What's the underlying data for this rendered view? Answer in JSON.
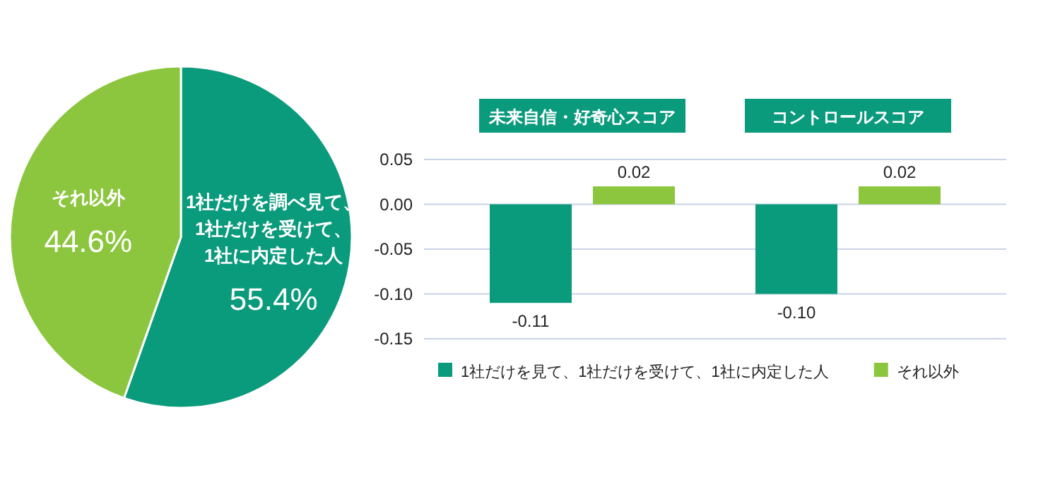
{
  "chart_data": [
    {
      "type": "pie",
      "categories": [
        "1社だけを調べ見て、\n1社だけを受けて、\n1社に内定した人",
        "それ以外"
      ],
      "values": [
        55.4,
        44.6
      ],
      "colors": [
        "#0a9a7c",
        "#8cc63e"
      ],
      "value_labels": [
        "55.4%",
        "44.6%"
      ]
    },
    {
      "type": "bar",
      "categories": [
        "未来自信・好奇心スコア",
        "コントロールスコア"
      ],
      "series": [
        {
          "name": "1社だけを見て、1社だけを受けて、1社に内定した人",
          "color": "#0a9a7c",
          "values": [
            -0.11,
            -0.1
          ],
          "value_labels": [
            "-0.11",
            "-0.10"
          ]
        },
        {
          "name": "それ以外",
          "color": "#8cc63e",
          "values": [
            0.02,
            0.02
          ],
          "value_labels": [
            "0.02",
            "0.02"
          ]
        }
      ],
      "ylim": [
        -0.15,
        0.05
      ],
      "yticks": [
        {
          "value": 0.05,
          "label": "0.05"
        },
        {
          "value": 0,
          "label": "0.00"
        },
        {
          "value": -0.05,
          "label": "-0.05"
        },
        {
          "value": -0.1,
          "label": "-0.10"
        },
        {
          "value": -0.15,
          "label": "-0.15"
        }
      ],
      "grid": "y",
      "legend": "bottom"
    }
  ]
}
